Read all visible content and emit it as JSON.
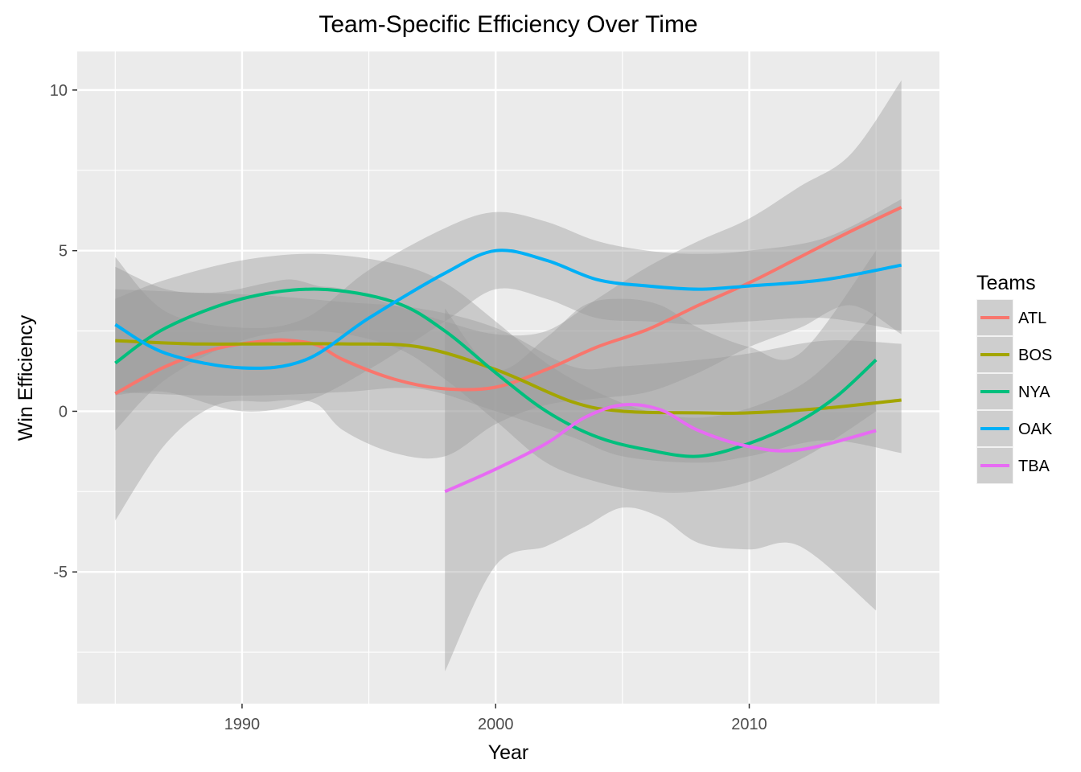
{
  "chart_data": {
    "type": "line",
    "title": "Team-Specific Efficiency Over Time",
    "xlabel": "Year",
    "ylabel": "Win Efficiency",
    "xlim": [
      1983.5,
      2017.5
    ],
    "ylim": [
      -9.1,
      11.2
    ],
    "x_ticks": [
      1990,
      2000,
      2010
    ],
    "x_tick_labels": [
      "1990",
      "2000",
      "2010"
    ],
    "x_minor_ticks": [
      1985,
      1995,
      2005,
      2015
    ],
    "y_ticks": [
      -5,
      0,
      5,
      10
    ],
    "y_tick_labels": [
      "-5",
      "0",
      "5",
      "10"
    ],
    "y_minor_ticks": [
      -7.5,
      -2.5,
      2.5,
      7.5
    ],
    "grid": true,
    "panel_background": "#ebebeb",
    "ribbon_color": "#999999",
    "legend": {
      "title": "Teams",
      "position": "right"
    },
    "series": [
      {
        "name": "ATL",
        "color": "#F8766D",
        "x": [
          1985,
          1987,
          1989,
          1991,
          1992,
          1993,
          1994,
          1996,
          1998,
          2000,
          2002,
          2004,
          2006,
          2008,
          2010,
          2012,
          2014,
          2016
        ],
        "y": [
          0.55,
          1.4,
          1.95,
          2.2,
          2.2,
          2.05,
          1.6,
          1.0,
          0.7,
          0.75,
          1.3,
          2.0,
          2.55,
          3.3,
          4.0,
          4.8,
          5.6,
          6.35
        ],
        "lower": [
          -3.4,
          -1.0,
          0.2,
          0.3,
          0.35,
          0.2,
          -0.6,
          -1.3,
          -1.4,
          -0.4,
          0.2,
          0.4,
          0.6,
          1.2,
          2.0,
          2.6,
          3.3,
          2.4
        ],
        "upper": [
          4.5,
          3.8,
          3.7,
          4.0,
          4.1,
          3.9,
          3.8,
          3.3,
          2.8,
          2.4,
          2.5,
          3.5,
          4.5,
          5.3,
          6.0,
          7.0,
          8.0,
          10.3
        ]
      },
      {
        "name": "BOS",
        "color": "#A3A500",
        "x": [
          1985,
          1988,
          1991,
          1994,
          1997,
          2000,
          2003,
          2005,
          2008,
          2010,
          2013,
          2016
        ],
        "y": [
          2.2,
          2.1,
          2.1,
          2.1,
          2.0,
          1.3,
          0.3,
          0.0,
          -0.05,
          -0.05,
          0.1,
          0.35
        ],
        "lower": [
          0.6,
          0.5,
          0.5,
          0.6,
          0.7,
          0.0,
          -0.8,
          -1.4,
          -1.6,
          -1.4,
          -0.9,
          -1.3
        ],
        "upper": [
          3.8,
          3.7,
          3.6,
          3.4,
          3.2,
          2.6,
          1.4,
          1.4,
          1.6,
          1.8,
          2.2,
          2.1
        ]
      },
      {
        "name": "NYA",
        "color": "#00BF7D",
        "x": [
          1985,
          1987,
          1990,
          1993,
          1996,
          1998,
          2000,
          2002,
          2004,
          2006,
          2008,
          2010,
          2012,
          2013.5,
          2015
        ],
        "y": [
          1.5,
          2.6,
          3.5,
          3.8,
          3.4,
          2.5,
          1.2,
          0.0,
          -0.8,
          -1.2,
          -1.4,
          -1.0,
          -0.3,
          0.5,
          1.6
        ],
        "lower": [
          -0.6,
          1.0,
          2.2,
          2.5,
          2.0,
          1.0,
          -0.3,
          -1.6,
          -2.2,
          -2.5,
          -2.5,
          -2.2,
          -1.5,
          -0.8,
          0.0
        ],
        "upper": [
          3.5,
          4.1,
          4.7,
          4.9,
          4.6,
          4.0,
          2.8,
          1.5,
          0.6,
          0.0,
          -0.2,
          0.1,
          0.8,
          1.8,
          3.1
        ]
      },
      {
        "name": "OAK",
        "color": "#00B0F6",
        "x": [
          1985,
          1987,
          1990,
          1992.5,
          1995,
          1998,
          2000,
          2002,
          2004,
          2006,
          2008,
          2010,
          2013,
          2016
        ],
        "y": [
          2.7,
          1.8,
          1.35,
          1.6,
          2.9,
          4.3,
          5.0,
          4.7,
          4.1,
          3.9,
          3.8,
          3.9,
          4.1,
          4.55
        ],
        "lower": [
          0.5,
          0.6,
          0.0,
          0.3,
          1.3,
          2.8,
          3.8,
          3.5,
          2.9,
          2.8,
          2.7,
          2.8,
          2.9,
          2.5
        ],
        "upper": [
          4.8,
          3.1,
          2.6,
          2.9,
          4.4,
          5.7,
          6.2,
          5.9,
          5.3,
          5.0,
          4.9,
          5.0,
          5.4,
          6.6
        ]
      },
      {
        "name": "TBA",
        "color": "#E76BF3",
        "x": [
          1998,
          2000,
          2002,
          2003.5,
          2005,
          2006.5,
          2008,
          2010,
          2012,
          2015
        ],
        "y": [
          -2.5,
          -1.8,
          -1.0,
          -0.2,
          0.2,
          0.05,
          -0.6,
          -1.1,
          -1.2,
          -0.6
        ],
        "lower": [
          -8.1,
          -4.8,
          -4.2,
          -3.6,
          -3.0,
          -3.3,
          -4.1,
          -4.3,
          -4.2,
          -6.2
        ],
        "upper": [
          3.2,
          1.3,
          2.3,
          3.3,
          3.5,
          3.3,
          2.6,
          2.0,
          1.8,
          5.0
        ]
      }
    ]
  }
}
